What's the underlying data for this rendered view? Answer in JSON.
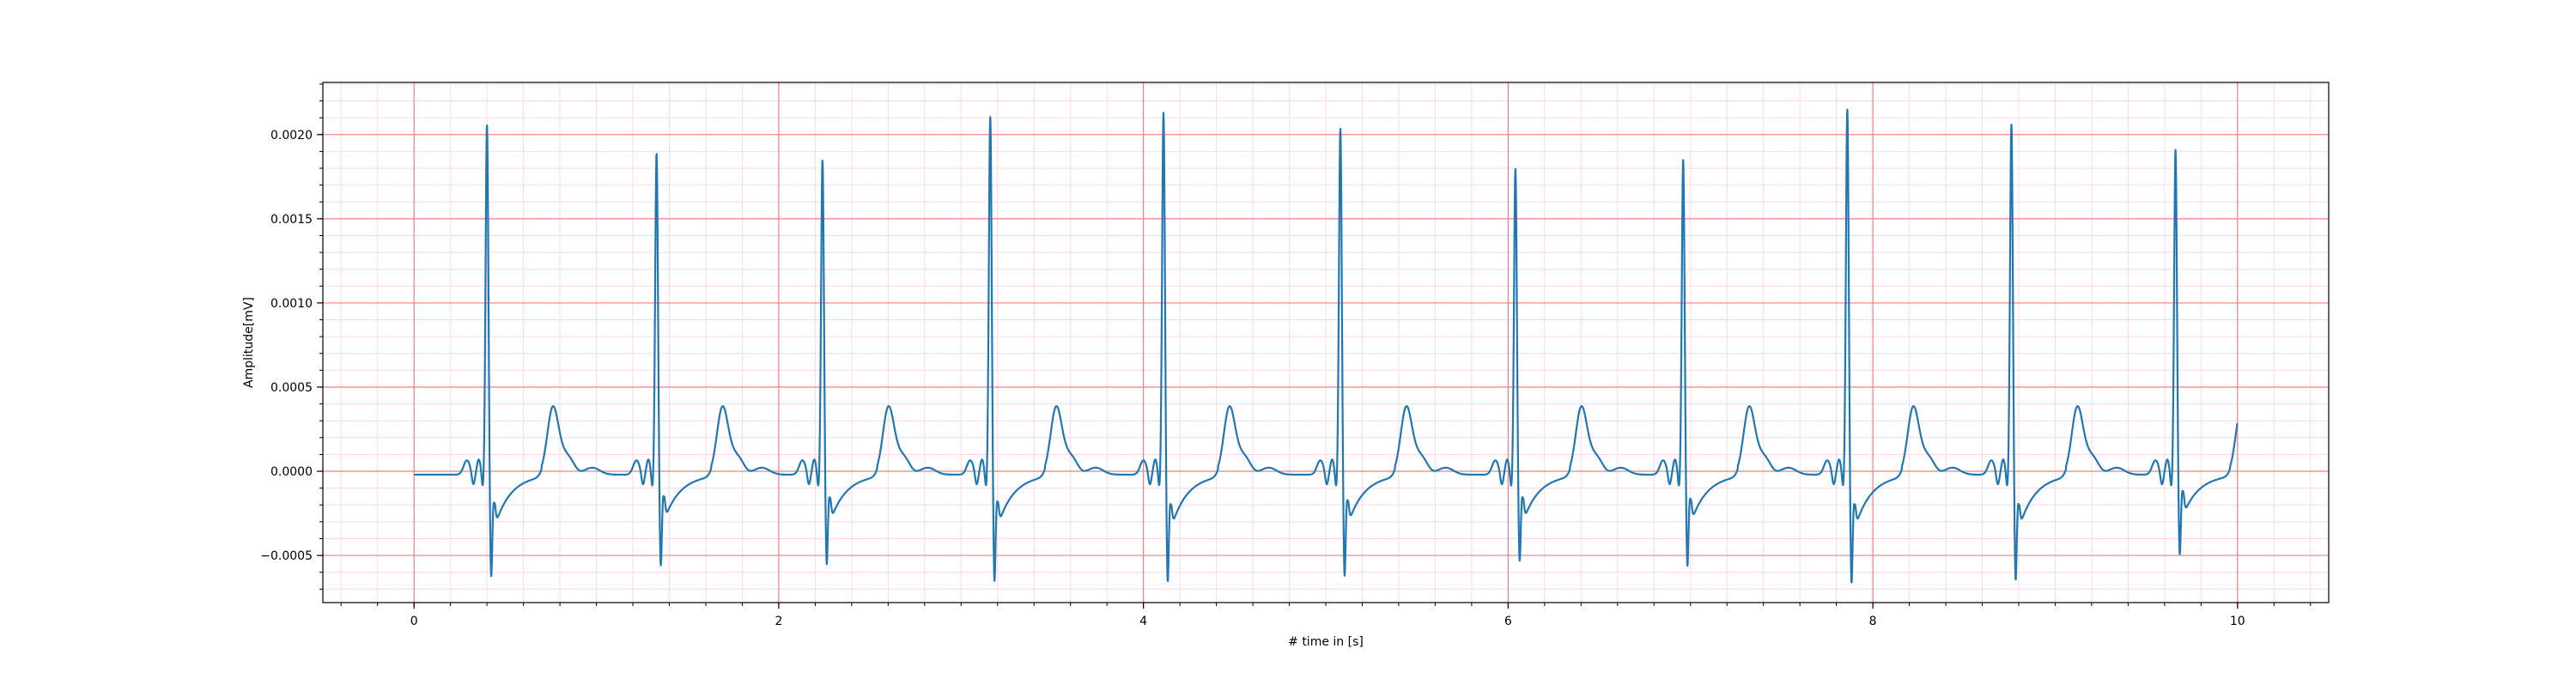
{
  "chart_data": {
    "type": "line",
    "title": "",
    "xlabel": "# time in [s]",
    "ylabel": "Amplitude[mV]",
    "xlim": [
      -0.5,
      10.5
    ],
    "ylim": [
      -0.00078,
      0.00231
    ],
    "x_major_ticks": [
      0,
      2,
      4,
      6,
      8,
      10
    ],
    "x_tick_labels": [
      "0",
      "2",
      "4",
      "6",
      "8",
      "10"
    ],
    "y_major_ticks": [
      -0.0005,
      0.0,
      0.0005,
      0.001,
      0.0015,
      0.002
    ],
    "y_tick_labels": [
      "−0.0005",
      "0.0000",
      "0.0005",
      "0.0010",
      "0.0015",
      "0.0020"
    ],
    "grid": {
      "major": true,
      "minor": true,
      "major_color": "#f08080",
      "minor_color": "#ffd7e6"
    },
    "legend": null,
    "series": [
      {
        "color": "#1f77b4",
        "line_style": "ecg",
        "baseline": 0.0,
        "x_start": 0.0,
        "x_end": 10.0,
        "beats": [
          {
            "r_time": 0.4,
            "r_amp": 0.00208,
            "s_amp": -0.00058,
            "tail_amp": -0.0004
          },
          {
            "r_time": 1.33,
            "r_amp": 0.00191,
            "s_amp": -0.00052,
            "tail_amp": -0.00035
          },
          {
            "r_time": 2.24,
            "r_amp": 0.00187,
            "s_amp": -0.00051,
            "tail_amp": -0.00036
          },
          {
            "r_time": 3.16,
            "r_amp": 0.00213,
            "s_amp": -0.00061,
            "tail_amp": -0.00039
          },
          {
            "r_time": 4.11,
            "r_amp": 0.00215,
            "s_amp": -0.00061,
            "tail_amp": -0.00041
          },
          {
            "r_time": 5.08,
            "r_amp": 0.00206,
            "s_amp": -0.00058,
            "tail_amp": -0.00038
          },
          {
            "r_time": 6.04,
            "r_amp": 0.00182,
            "s_amp": -0.00049,
            "tail_amp": -0.00036
          },
          {
            "r_time": 6.96,
            "r_amp": 0.00187,
            "s_amp": -0.00052,
            "tail_amp": -0.00037
          },
          {
            "r_time": 7.86,
            "r_amp": 0.00217,
            "s_amp": -0.00062,
            "tail_amp": -0.00041
          },
          {
            "r_time": 8.76,
            "r_amp": 0.00208,
            "s_amp": -0.0006,
            "tail_amp": -0.00041
          },
          {
            "r_time": 9.66,
            "r_amp": 0.00193,
            "s_amp": -0.00046,
            "tail_amp": -0.00031
          }
        ]
      }
    ]
  }
}
